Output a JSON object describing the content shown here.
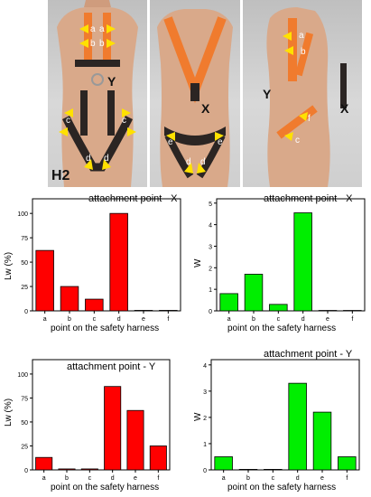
{
  "figure": {
    "photo_label": "H2",
    "marker_x": "X",
    "marker_y": "Y",
    "point_markers": [
      "a",
      "b",
      "c",
      "d",
      "e",
      "f"
    ]
  },
  "colors": {
    "red_bar": "#ff0000",
    "green_bar": "#00ee00",
    "strap_orange": "#f07b2e",
    "strap_black": "#2b2523",
    "arrow_yellow": "#ffe100"
  },
  "chart_data": [
    {
      "id": "lw-x",
      "type": "bar",
      "title": "attachment point - X",
      "xlabel": "point on the safety harness",
      "ylabel": "Lw (%)",
      "categories": [
        "a",
        "b",
        "c",
        "d",
        "e",
        "f"
      ],
      "values": [
        62,
        25,
        12,
        100,
        0.5,
        0.5
      ],
      "ylim": [
        0,
        115
      ],
      "yticks": [
        0,
        25,
        50,
        75,
        100
      ],
      "color": "#ff0000"
    },
    {
      "id": "w-x",
      "type": "bar",
      "title": "attachment point - X",
      "xlabel": "point on the safety harness",
      "ylabel": "W",
      "categories": [
        "a",
        "b",
        "c",
        "d",
        "e",
        "f"
      ],
      "values": [
        0.8,
        1.7,
        0.3,
        4.55,
        0.02,
        0.02
      ],
      "ylim": [
        0,
        5.2
      ],
      "yticks": [
        0,
        1,
        2,
        3,
        4,
        5
      ],
      "color": "#00ee00"
    },
    {
      "id": "lw-y",
      "type": "bar",
      "title": "attachment point - Y",
      "xlabel": "point on the safety harness",
      "ylabel": "Lw (%)",
      "categories": [
        "a",
        "b",
        "c",
        "d",
        "e",
        "f"
      ],
      "values": [
        13,
        1,
        1,
        87,
        62,
        25
      ],
      "ylim": [
        0,
        115
      ],
      "yticks": [
        0,
        25,
        50,
        75,
        100
      ],
      "color": "#ff0000"
    },
    {
      "id": "w-y",
      "type": "bar",
      "title": "attachment point - Y",
      "xlabel": "point on the safety harness",
      "ylabel": "W",
      "categories": [
        "a",
        "b",
        "c",
        "d",
        "e",
        "f"
      ],
      "values": [
        0.5,
        0.02,
        0.02,
        3.3,
        2.2,
        0.5
      ],
      "ylim": [
        0,
        4.2
      ],
      "yticks": [
        0,
        1,
        2,
        3,
        4
      ],
      "color": "#00ee00"
    }
  ]
}
